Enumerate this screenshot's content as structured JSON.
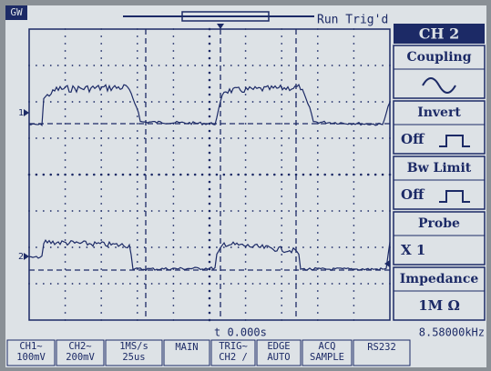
{
  "header": {
    "logo": "GW",
    "status": "Run Trig'd"
  },
  "menu": {
    "title": "CH 2",
    "items": [
      {
        "label": "Coupling"
      },
      {
        "label": "Invert",
        "value": "Off"
      },
      {
        "label": "Bw Limit",
        "value": "Off"
      },
      {
        "label": "Probe",
        "value": "X 1"
      },
      {
        "label": "Impedance",
        "value": "1M Ω"
      }
    ]
  },
  "markers": [
    "1",
    "2"
  ],
  "readouts": {
    "time": "t 0.000s",
    "frequency": "8.58000kHz"
  },
  "status_bar": [
    [
      "CH1∼",
      "100mV"
    ],
    [
      "CH2∼",
      "200mV"
    ],
    [
      "1MS/s",
      "25us"
    ],
    [
      "MAIN"
    ],
    [
      "TRIG∼",
      "CH2 /"
    ],
    [
      "EDGE",
      "AUTO"
    ],
    [
      "ACQ",
      "SAMPLE"
    ],
    [
      "RS232"
    ]
  ]
}
